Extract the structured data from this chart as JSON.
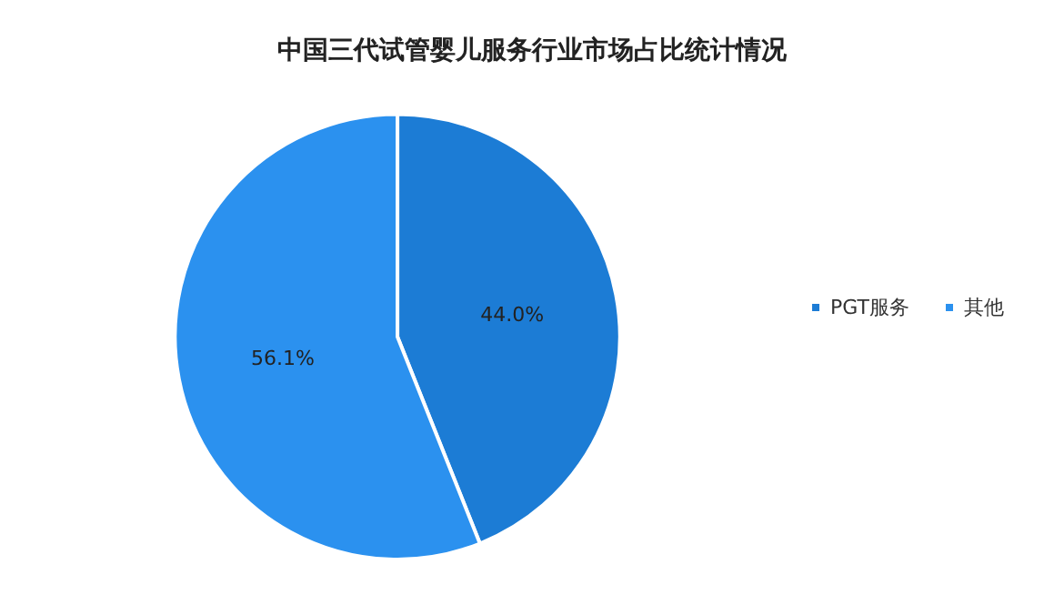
{
  "chart_data": {
    "type": "pie",
    "title": "中国三代试管婴儿服务行业市场占比统计情况",
    "categories": [
      "PGT服务",
      "其他"
    ],
    "values": [
      44.0,
      56.1
    ],
    "colors": [
      "#1c7cd5",
      "#2b91ef"
    ],
    "value_labels": [
      "44.0%",
      "56.1%"
    ],
    "legend": "right"
  }
}
